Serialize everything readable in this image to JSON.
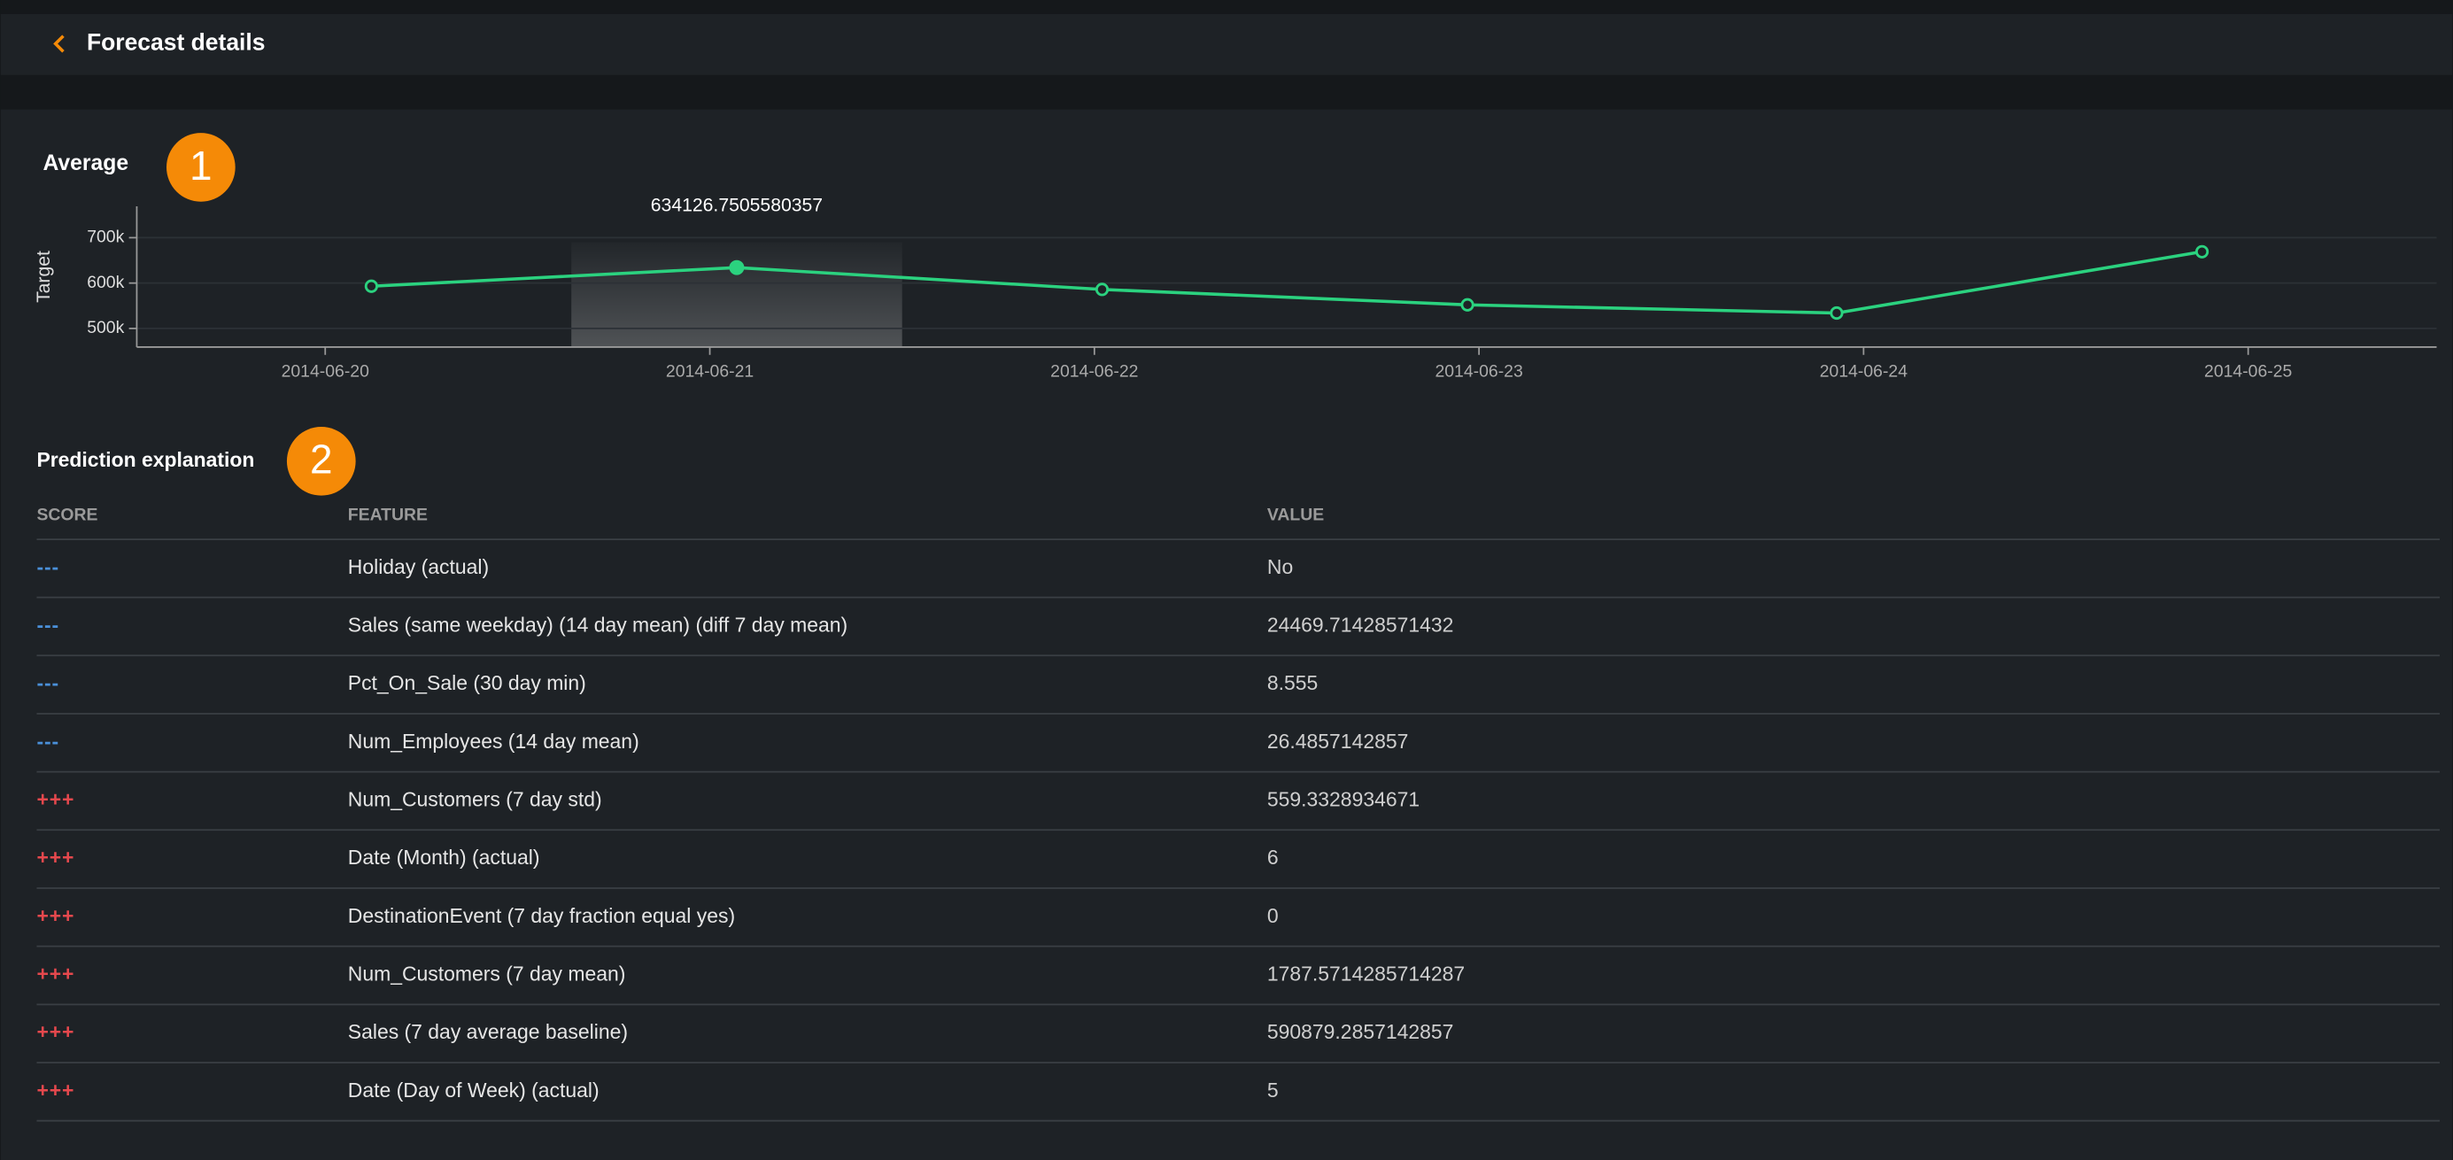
{
  "header": {
    "title": "Forecast details"
  },
  "chart_data": {
    "type": "line",
    "title": "Average",
    "badge": "1",
    "ylabel": "Target",
    "x": [
      0.12,
      1.07,
      2.02,
      2.97,
      3.93,
      4.88
    ],
    "series": [
      {
        "name": "Average",
        "color": "#2bd27f",
        "values": [
          593000,
          634126.7505580357,
          586000,
          552000,
          534000,
          669000
        ]
      }
    ],
    "xlim": [
      -0.49,
      5.49
    ],
    "xticks": [
      {
        "value": 0,
        "label": "2014-06-20"
      },
      {
        "value": 1,
        "label": "2014-06-21"
      },
      {
        "value": 2,
        "label": "2014-06-22"
      },
      {
        "value": 3,
        "label": "2014-06-23"
      },
      {
        "value": 4,
        "label": "2014-06-24"
      },
      {
        "value": 5,
        "label": "2014-06-25"
      }
    ],
    "ylim": [
      459000,
      769000
    ],
    "yticks": [
      {
        "value": 500000,
        "label": "500k"
      },
      {
        "value": 600000,
        "label": "600k"
      },
      {
        "value": 700000,
        "label": "700k"
      }
    ],
    "grid": true,
    "highlight_index": 1
  },
  "explanation": {
    "title": "Prediction explanation",
    "badge": "2",
    "columns": [
      "SCORE",
      "FEATURE",
      "VALUE"
    ],
    "rows": [
      [
        "---",
        "Holiday (actual)",
        "No"
      ],
      [
        "---",
        "Sales (same weekday) (14 day mean) (diff 7 day mean)",
        "24469.71428571432"
      ],
      [
        "---",
        "Pct_On_Sale (30 day min)",
        "8.555"
      ],
      [
        "---",
        "Num_Employees (14 day mean)",
        "26.4857142857"
      ],
      [
        "+++",
        "Num_Customers (7 day std)",
        "559.3328934671"
      ],
      [
        "+++",
        "Date (Month) (actual)",
        "6"
      ],
      [
        "+++",
        "DestinationEvent (7 day fraction equal yes)",
        "0"
      ],
      [
        "+++",
        "Num_Customers (7 day mean)",
        "1787.5714285714287"
      ],
      [
        "+++",
        "Sales (7 day average baseline)",
        "590879.2857142857"
      ],
      [
        "+++",
        "Date (Day of Week) (actual)",
        "5"
      ]
    ]
  }
}
